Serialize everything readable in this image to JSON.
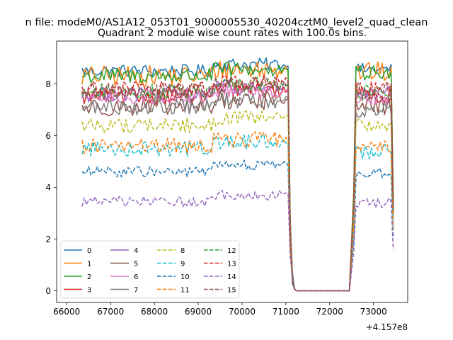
{
  "suptitle": "n file: modeM0/AS1A12_053T01_9000005530_40204cztM0_level2_quad_clean",
  "chart_data": {
    "type": "line",
    "title": "Quadrant 2 module wise count rates with 100.0s bins.",
    "xlabel": "",
    "ylabel": "",
    "x_offset_label": "+4.157e8",
    "xlim": [
      65770,
      73780
    ],
    "ylim": [
      -0.45,
      9.65
    ],
    "xticks": [
      66000,
      67000,
      68000,
      69000,
      70000,
      71000,
      72000,
      73000
    ],
    "xtick_labels": [
      "66000",
      "67000",
      "68000",
      "69000",
      "70000",
      "71000",
      "72000",
      "73000"
    ],
    "yticks": [
      0,
      2,
      4,
      6,
      8
    ],
    "ytick_labels": [
      "0",
      "2",
      "4",
      "6",
      "8"
    ],
    "grid": false,
    "legend": "lower-left",
    "x_gti1": [
      66350,
      71050
    ],
    "x_gap": [
      71100,
      71150,
      71200,
      71250,
      72450
    ],
    "x_gti2": [
      72550,
      73450
    ],
    "series": [
      {
        "name": "0",
        "color": "#1f77b4",
        "dash": "solid",
        "base": 8.5,
        "amp": 0.25,
        "second": 8.55
      },
      {
        "name": "1",
        "color": "#ff7f0e",
        "dash": "solid",
        "base": 8.3,
        "amp": 0.4,
        "second": 8.45
      },
      {
        "name": "2",
        "color": "#2ca02c",
        "dash": "solid",
        "base": 8.3,
        "amp": 0.3,
        "second": 8.4
      },
      {
        "name": "3",
        "color": "#d62728",
        "dash": "solid",
        "base": 7.5,
        "amp": 0.3,
        "second": 7.55
      },
      {
        "name": "4",
        "color": "#9467bd",
        "dash": "solid",
        "base": 7.6,
        "amp": 0.3,
        "second": 7.6
      },
      {
        "name": "5",
        "color": "#8c564b",
        "dash": "solid",
        "base": 7.1,
        "amp": 0.35,
        "second": 7.15
      },
      {
        "name": "6",
        "color": "#e377c2",
        "dash": "solid",
        "base": 7.5,
        "amp": 0.3,
        "second": 7.5
      },
      {
        "name": "7",
        "color": "#7f7f7f",
        "dash": "solid",
        "base": 7.1,
        "amp": 0.3,
        "second": 7.0
      },
      {
        "name": "8",
        "color": "#bcbd22",
        "dash": "dashed",
        "base": 6.4,
        "amp": 0.3,
        "second": 6.4
      },
      {
        "name": "9",
        "color": "#17becf",
        "dash": "dashed",
        "base": 5.5,
        "amp": 0.3,
        "second": 5.4
      },
      {
        "name": "10",
        "color": "#1f77b4",
        "dash": "dashed",
        "base": 4.6,
        "amp": 0.2,
        "second": 4.55
      },
      {
        "name": "11",
        "color": "#ff7f0e",
        "dash": "dashed",
        "base": 5.6,
        "amp": 0.3,
        "second": 5.55
      },
      {
        "name": "12",
        "color": "#2ca02c",
        "dash": "dashed",
        "base": 7.7,
        "amp": 0.3,
        "second": 7.65
      },
      {
        "name": "13",
        "color": "#d62728",
        "dash": "dashed",
        "base": 7.8,
        "amp": 0.3,
        "second": 7.8
      },
      {
        "name": "14",
        "color": "#9467bd",
        "dash": "dashed",
        "base": 3.45,
        "amp": 0.2,
        "second": 3.4
      },
      {
        "name": "15",
        "color": "#8c564b",
        "dash": "dashed",
        "base": 7.7,
        "amp": 0.35,
        "second": 7.7
      }
    ]
  }
}
